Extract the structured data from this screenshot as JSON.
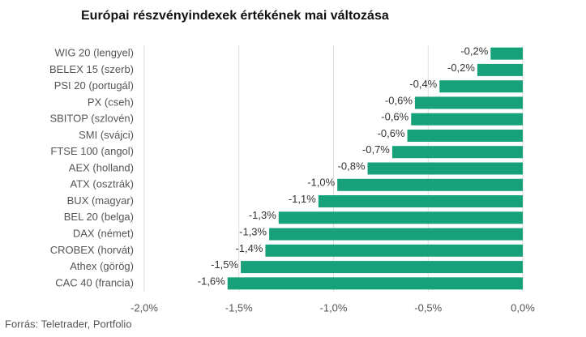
{
  "chart_data": {
    "type": "hbar",
    "title": "Európai részvényindexek értékének mai változása",
    "source": "Forrás: Teletrader, Portfolio",
    "categories": [
      "WIG 20 (lengyel)",
      "BELEX 15 (szerb)",
      "PSI 20 (portugál)",
      "PX (cseh)",
      "SBITOP (szlovén)",
      "SMI (svájci)",
      "FTSE 100 (angol)",
      "AEX (holland)",
      "ATX (osztrák)",
      "BUX (magyar)",
      "BEL 20 (belga)",
      "DAX (német)",
      "CROBEX (horvát)",
      "Athex (görög)",
      "CAC 40 (francia)"
    ],
    "values": [
      -0.17,
      -0.24,
      -0.44,
      -0.57,
      -0.59,
      -0.61,
      -0.69,
      -0.82,
      -0.98,
      -1.08,
      -1.29,
      -1.34,
      -1.36,
      -1.49,
      -1.56
    ],
    "value_labels": [
      "-0,2%",
      "-0,2%",
      "-0,4%",
      "-0,6%",
      "-0,6%",
      "-0,6%",
      "-0,7%",
      "-0,8%",
      "-1,0%",
      "-1,1%",
      "-1,3%",
      "-1,3%",
      "-1,4%",
      "-1,5%",
      "-1,6%"
    ],
    "color": "#17a17a",
    "xlim": [
      -2.0,
      0.0
    ],
    "xticks": [
      {
        "value": -2.0,
        "label": "-2,0%"
      },
      {
        "value": -1.5,
        "label": "-1,5%"
      },
      {
        "value": -1.0,
        "label": "-1,0%"
      },
      {
        "value": -0.5,
        "label": "-0,5%"
      },
      {
        "value": 0.0,
        "label": "0,0%"
      }
    ],
    "grid": true
  }
}
